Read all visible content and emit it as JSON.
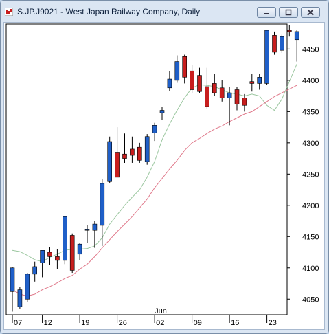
{
  "window": {
    "title": "S.JP.J9021 - West Japan Railway Company, Daily",
    "icon": "chart-app-icon",
    "buttons": [
      "minimize-icon",
      "maximize-icon",
      "close-icon"
    ]
  },
  "colors": {
    "up": "#1f5fc8",
    "down": "#c81e1e",
    "ma_short": "#9cc7a0",
    "ma_long": "#e0788a"
  },
  "chart_data": {
    "type": "candlestick",
    "title": "",
    "xlabel": "",
    "ylabel": "",
    "ylim": [
      4025,
      4490
    ],
    "yticks": [
      4050,
      4100,
      4150,
      4200,
      4250,
      4300,
      4350,
      4400,
      4450
    ],
    "month_label": "Jun",
    "xtick_labels": [
      "07",
      "12",
      "19",
      "26",
      "02",
      "09",
      "16",
      "23"
    ],
    "xtick_bar_index": [
      0,
      4,
      9,
      14,
      19,
      24,
      29,
      34
    ],
    "month_label_bar_index": 19,
    "candles": [
      {
        "o": 4062,
        "h": 4101,
        "l": 4030,
        "c": 4100
      },
      {
        "o": 4038,
        "h": 4070,
        "l": 4035,
        "c": 4065
      },
      {
        "o": 4050,
        "h": 4092,
        "l": 4045,
        "c": 4090
      },
      {
        "o": 4090,
        "h": 4110,
        "l": 4078,
        "c": 4102
      },
      {
        "o": 4108,
        "h": 4128,
        "l": 4085,
        "c": 4128
      },
      {
        "o": 4125,
        "h": 4133,
        "l": 4105,
        "c": 4118
      },
      {
        "o": 4118,
        "h": 4130,
        "l": 4098,
        "c": 4112
      },
      {
        "o": 4112,
        "h": 4183,
        "l": 4106,
        "c": 4182
      },
      {
        "o": 4152,
        "h": 4155,
        "l": 4092,
        "c": 4096
      },
      {
        "o": 4122,
        "h": 4140,
        "l": 4112,
        "c": 4138
      },
      {
        "o": 4160,
        "h": 4168,
        "l": 4140,
        "c": 4162
      },
      {
        "o": 4160,
        "h": 4175,
        "l": 4132,
        "c": 4170
      },
      {
        "o": 4168,
        "h": 4242,
        "l": 4135,
        "c": 4235
      },
      {
        "o": 4238,
        "h": 4310,
        "l": 4236,
        "c": 4302
      },
      {
        "o": 4285,
        "h": 4325,
        "l": 4248,
        "c": 4245
      },
      {
        "o": 4282,
        "h": 4315,
        "l": 4268,
        "c": 4275
      },
      {
        "o": 4290,
        "h": 4310,
        "l": 4268,
        "c": 4280
      },
      {
        "o": 4293,
        "h": 4300,
        "l": 4268,
        "c": 4272
      },
      {
        "o": 4270,
        "h": 4314,
        "l": 4265,
        "c": 4310
      },
      {
        "o": 4316,
        "h": 4332,
        "l": 4303,
        "c": 4328
      },
      {
        "o": 4348,
        "h": 4358,
        "l": 4337,
        "c": 4352
      },
      {
        "o": 4388,
        "h": 4415,
        "l": 4383,
        "c": 4402
      },
      {
        "o": 4400,
        "h": 4440,
        "l": 4396,
        "c": 4430
      },
      {
        "o": 4438,
        "h": 4441,
        "l": 4395,
        "c": 4405
      },
      {
        "o": 4415,
        "h": 4425,
        "l": 4380,
        "c": 4385
      },
      {
        "o": 4408,
        "h": 4420,
        "l": 4380,
        "c": 4382
      },
      {
        "o": 4390,
        "h": 4420,
        "l": 4355,
        "c": 4358
      },
      {
        "o": 4395,
        "h": 4410,
        "l": 4375,
        "c": 4380
      },
      {
        "o": 4388,
        "h": 4400,
        "l": 4366,
        "c": 4372
      },
      {
        "o": 4372,
        "h": 4390,
        "l": 4328,
        "c": 4380
      },
      {
        "o": 4385,
        "h": 4390,
        "l": 4352,
        "c": 4362
      },
      {
        "o": 4372,
        "h": 4378,
        "l": 4350,
        "c": 4360
      },
      {
        "o": 4398,
        "h": 4410,
        "l": 4382,
        "c": 4395
      },
      {
        "o": 4395,
        "h": 4410,
        "l": 4385,
        "c": 4405
      },
      {
        "o": 4395,
        "h": 4480,
        "l": 4393,
        "c": 4480
      },
      {
        "o": 4472,
        "h": 4478,
        "l": 4441,
        "c": 4445
      },
      {
        "o": 4448,
        "h": 4473,
        "l": 4444,
        "c": 4470
      },
      {
        "o": 4480,
        "h": 4488,
        "l": 4470,
        "c": 4478
      },
      {
        "o": 4465,
        "h": 4481,
        "l": 4430,
        "c": 4478
      }
    ],
    "series": [
      {
        "type": "line",
        "color": "#9cc7a0",
        "values": [
          4128,
          4126,
          4120,
          4113,
          4110,
          4117,
          4122,
          4128,
          4130,
          4130,
          4131,
          4135,
          4148,
          4170,
          4185,
          4200,
          4213,
          4225,
          4245,
          4270,
          4305,
          4330,
          4352,
          4372,
          4388,
          4393,
          4392,
          4390,
          4385,
          4380,
          4378,
          4375,
          4378,
          4375,
          4360,
          4352,
          4370,
          4398,
          4426
        ]
      },
      {
        "type": "line",
        "color": "#e0788a",
        "values": [
          4065,
          4058,
          4055,
          4058,
          4065,
          4070,
          4076,
          4083,
          4088,
          4098,
          4106,
          4118,
          4132,
          4145,
          4158,
          4170,
          4182,
          4196,
          4210,
          4228,
          4243,
          4258,
          4272,
          4288,
          4300,
          4307,
          4315,
          4322,
          4327,
          4334,
          4340,
          4346,
          4350,
          4358,
          4366,
          4374,
          4380,
          4386,
          4392
        ]
      }
    ]
  }
}
